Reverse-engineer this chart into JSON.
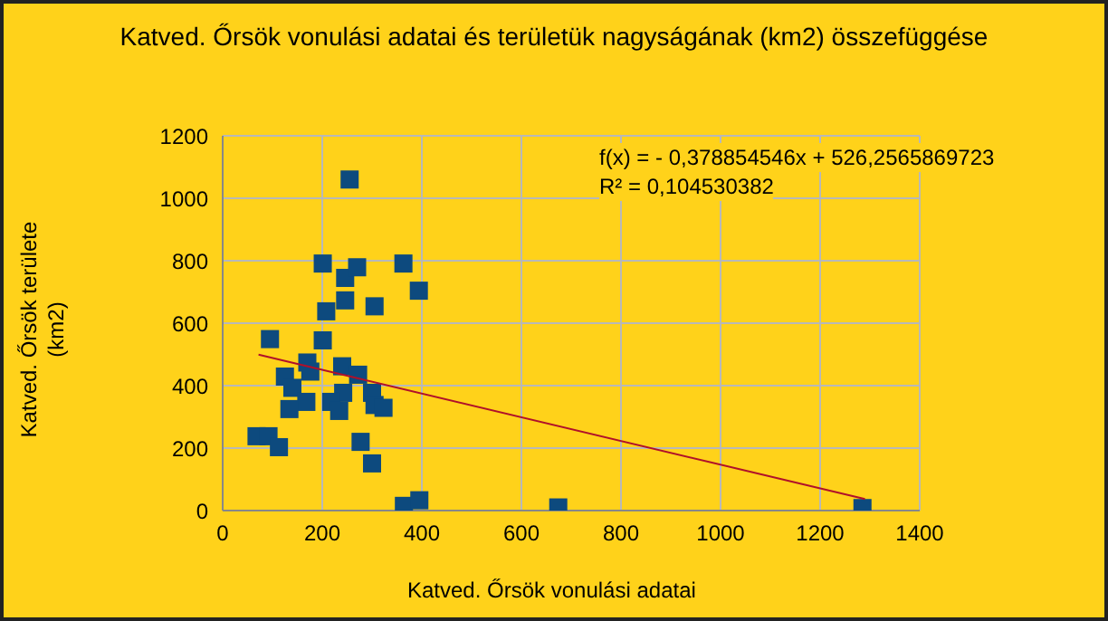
{
  "chart_data": {
    "type": "scatter",
    "title": "Katved. Őrsök vonulási adatai és területük nagyságának (km2) összefüggése",
    "xlabel": "Katved. Őrsök vonulási adatai",
    "ylabel": "Katved. Őrsök területe (km2)",
    "series": [
      {
        "color": "#0d4a7e",
        "marker": "square",
        "x": [
          255,
          201,
          246,
          270,
          363,
          394,
          246,
          208,
          305,
          95,
          201,
          176,
          170,
          176,
          224,
          240,
          272,
          125,
          140,
          242,
          168,
          218,
          300,
          305,
          134,
          234,
          323,
          68,
          92,
          113,
          277,
          300,
          364,
          395,
          674,
          1285
        ],
        "values": [
          1060,
          791,
          745,
          779,
          791,
          704,
          673,
          638,
          654,
          549,
          545,
          null,
          474,
          445,
          null,
          462,
          435,
          429,
          393,
          377,
          348,
          348,
          377,
          338,
          325,
          319,
          329,
          238,
          238,
          203,
          220,
          151,
          15,
          33,
          10,
          8
        ]
      },
      {
        "type": "line",
        "color": "#b0102a",
        "marker": "none",
        "x": [
          72,
          1290
        ],
        "values": [
          499,
          37
        ]
      }
    ],
    "xlim": [
      0,
      1400
    ],
    "xticks": [
      0,
      200,
      400,
      600,
      800,
      1000,
      1200,
      1400
    ],
    "ylim": [
      0,
      1200
    ],
    "yticks": [
      0,
      200,
      400,
      600,
      800,
      1000,
      1200
    ],
    "grid": true,
    "annotations": [
      "f(x) =  - 0,378854546x + 526,2565869723",
      "R² = 0,104530382"
    ]
  }
}
